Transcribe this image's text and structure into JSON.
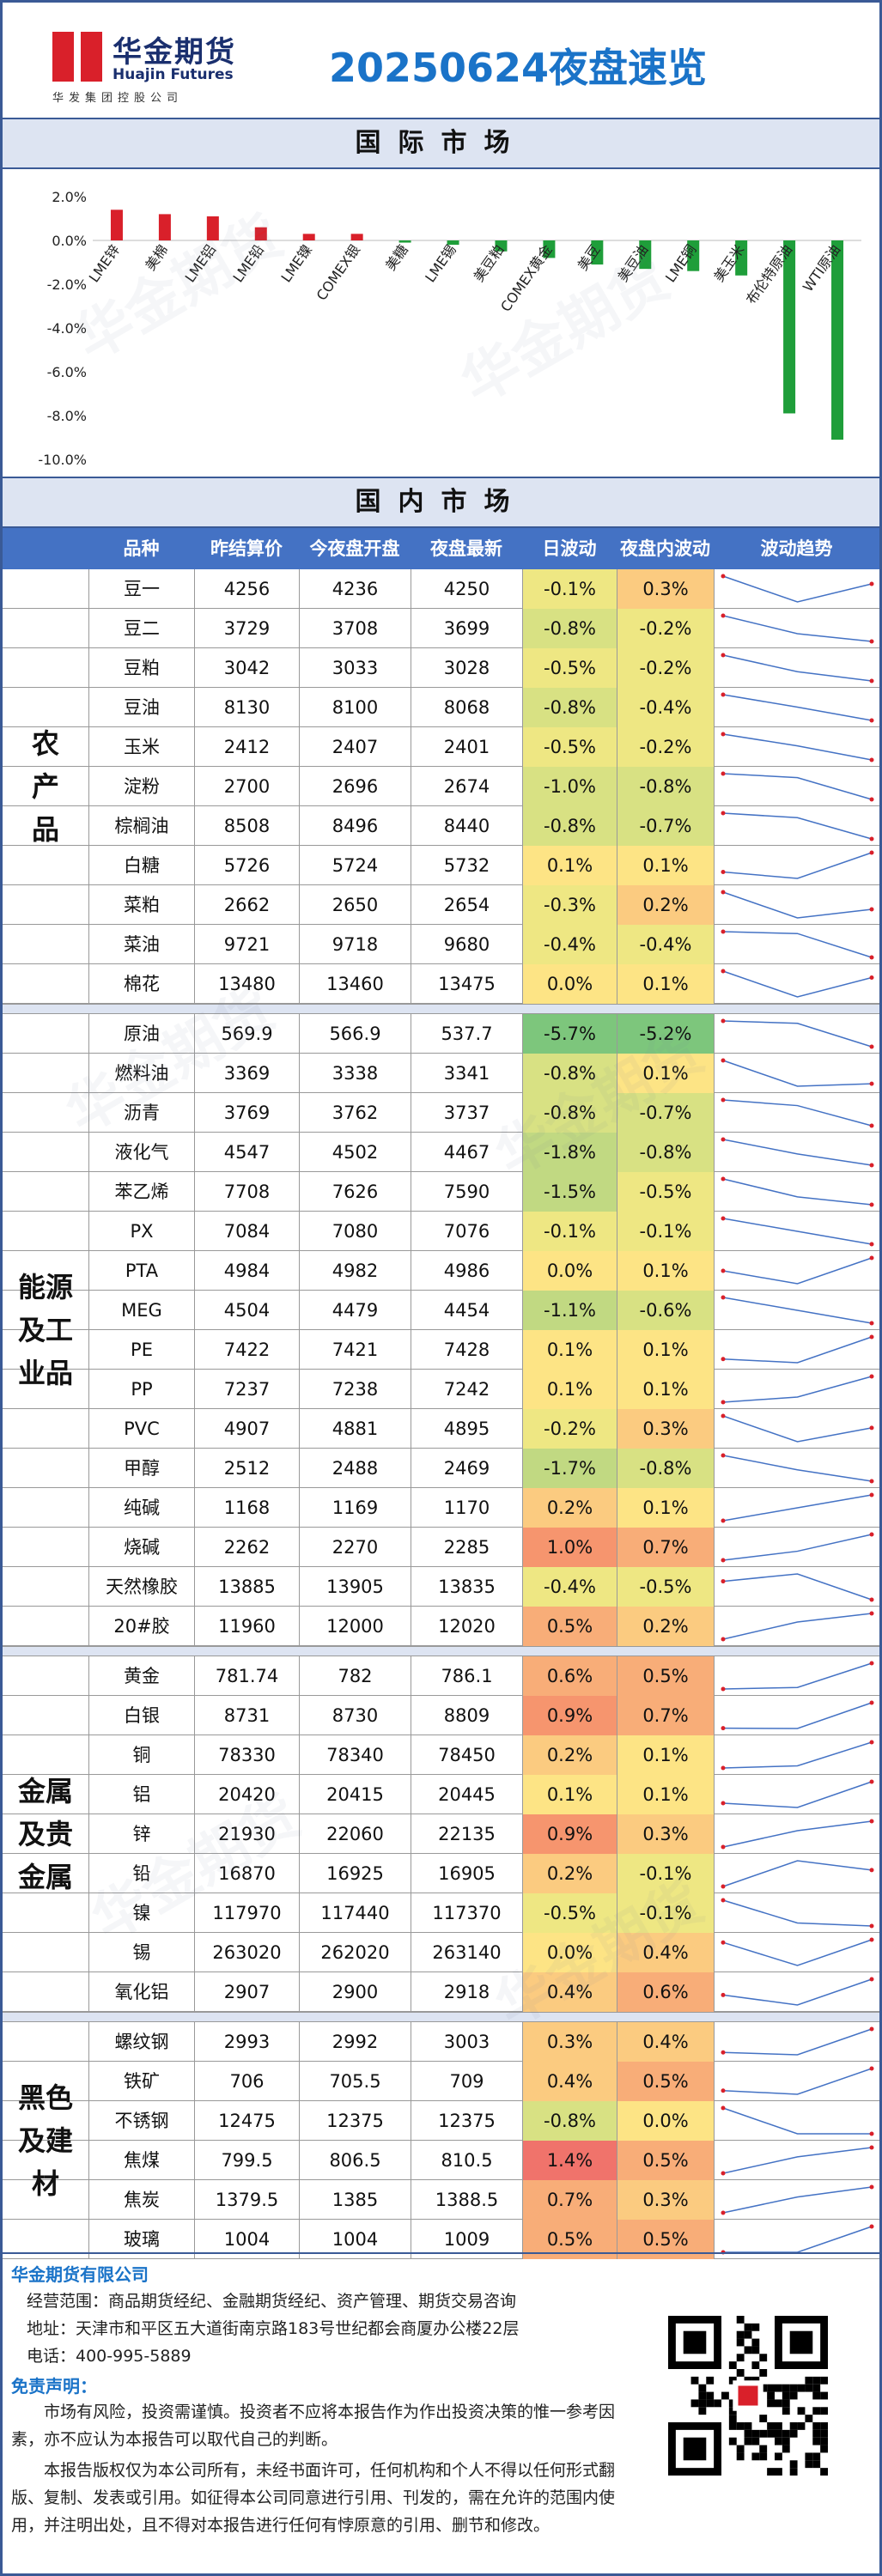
{
  "header": {
    "company_cn": "华金期货",
    "company_en": "Huajin Futures",
    "company_sub": "华发集团控股公司",
    "title": "20250624夜盘速览"
  },
  "intl_section_title": "国际市场",
  "dom_section_title": "国内市场",
  "chart_data": {
    "type": "bar",
    "categories": [
      "LME锌",
      "美棉",
      "LME铝",
      "LME铅",
      "LME镍",
      "COMEX银",
      "美糖",
      "LME锡",
      "美豆粕",
      "COMEX黄金",
      "美豆",
      "美豆油",
      "LME铜",
      "美玉米",
      "布伦特原油",
      "WTI原油"
    ],
    "values": [
      1.4,
      1.2,
      1.1,
      0.6,
      0.3,
      0.3,
      -0.1,
      -0.2,
      -0.5,
      -0.8,
      -1.1,
      -1.3,
      -1.4,
      -1.6,
      -7.9,
      -9.1
    ],
    "ylim": [
      -10,
      2
    ],
    "yticks": [
      "2.0%",
      "0.0%",
      "-2.0%",
      "-4.0%",
      "-6.0%",
      "-8.0%",
      "-10.0%"
    ],
    "bar_colors": [
      "#d9202a",
      "#d9202a",
      "#d9202a",
      "#d9202a",
      "#d9202a",
      "#d9202a",
      "#1f9e3a",
      "#1f9e3a",
      "#1f9e3a",
      "#1f9e3a",
      "#1f9e3a",
      "#1f9e3a",
      "#1f9e3a",
      "#1f9e3a",
      "#1f9e3a",
      "#1f9e3a"
    ]
  },
  "columns": [
    "品种",
    "昨结算价",
    "今夜盘开盘",
    "夜盘最新",
    "日波动",
    "夜盘内波动",
    "波动趋势"
  ],
  "sections": [
    {
      "label": "农产品",
      "rows": [
        [
          "豆一",
          "4256",
          "4236",
          "4250",
          "-0.1%",
          "0.3%"
        ],
        [
          "豆二",
          "3729",
          "3708",
          "3699",
          "-0.8%",
          "-0.2%"
        ],
        [
          "豆粕",
          "3042",
          "3033",
          "3028",
          "-0.5%",
          "-0.2%"
        ],
        [
          "豆油",
          "8130",
          "8100",
          "8068",
          "-0.8%",
          "-0.4%"
        ],
        [
          "玉米",
          "2412",
          "2407",
          "2401",
          "-0.5%",
          "-0.2%"
        ],
        [
          "淀粉",
          "2700",
          "2696",
          "2674",
          "-1.0%",
          "-0.8%"
        ],
        [
          "棕榈油",
          "8508",
          "8496",
          "8440",
          "-0.8%",
          "-0.7%"
        ],
        [
          "白糖",
          "5726",
          "5724",
          "5732",
          "0.1%",
          "0.1%"
        ],
        [
          "菜粕",
          "2662",
          "2650",
          "2654",
          "-0.3%",
          "0.2%"
        ],
        [
          "菜油",
          "9721",
          "9718",
          "9680",
          "-0.4%",
          "-0.4%"
        ],
        [
          "棉花",
          "13480",
          "13460",
          "13475",
          "0.0%",
          "0.1%"
        ]
      ]
    },
    {
      "label": "能源及工业品",
      "rows": [
        [
          "原油",
          "569.9",
          "566.9",
          "537.7",
          "-5.7%",
          "-5.2%"
        ],
        [
          "燃料油",
          "3369",
          "3338",
          "3341",
          "-0.8%",
          "0.1%"
        ],
        [
          "沥青",
          "3769",
          "3762",
          "3737",
          "-0.8%",
          "-0.7%"
        ],
        [
          "液化气",
          "4547",
          "4502",
          "4467",
          "-1.8%",
          "-0.8%"
        ],
        [
          "苯乙烯",
          "7708",
          "7626",
          "7590",
          "-1.5%",
          "-0.5%"
        ],
        [
          "PX",
          "7084",
          "7080",
          "7076",
          "-0.1%",
          "-0.1%"
        ],
        [
          "PTA",
          "4984",
          "4982",
          "4986",
          "0.0%",
          "0.1%"
        ],
        [
          "MEG",
          "4504",
          "4479",
          "4454",
          "-1.1%",
          "-0.6%"
        ],
        [
          "PE",
          "7422",
          "7421",
          "7428",
          "0.1%",
          "0.1%"
        ],
        [
          "PP",
          "7237",
          "7238",
          "7242",
          "0.1%",
          "0.1%"
        ],
        [
          "PVC",
          "4907",
          "4881",
          "4895",
          "-0.2%",
          "0.3%"
        ],
        [
          "甲醇",
          "2512",
          "2488",
          "2469",
          "-1.7%",
          "-0.8%"
        ],
        [
          "纯碱",
          "1168",
          "1169",
          "1170",
          "0.2%",
          "0.1%"
        ],
        [
          "烧碱",
          "2262",
          "2270",
          "2285",
          "1.0%",
          "0.7%"
        ],
        [
          "天然橡胶",
          "13885",
          "13905",
          "13835",
          "-0.4%",
          "-0.5%"
        ],
        [
          "20#胶",
          "11960",
          "12000",
          "12020",
          "0.5%",
          "0.2%"
        ]
      ]
    },
    {
      "label": "金属及贵金属",
      "rows": [
        [
          "黄金",
          "781.74",
          "782",
          "786.1",
          "0.6%",
          "0.5%"
        ],
        [
          "白银",
          "8731",
          "8730",
          "8809",
          "0.9%",
          "0.7%"
        ],
        [
          "铜",
          "78330",
          "78340",
          "78450",
          "0.2%",
          "0.1%"
        ],
        [
          "铝",
          "20420",
          "20415",
          "20445",
          "0.1%",
          "0.1%"
        ],
        [
          "锌",
          "21930",
          "22060",
          "22135",
          "0.9%",
          "0.3%"
        ],
        [
          "铅",
          "16870",
          "16925",
          "16905",
          "0.2%",
          "-0.1%"
        ],
        [
          "镍",
          "117970",
          "117440",
          "117370",
          "-0.5%",
          "-0.1%"
        ],
        [
          "锡",
          "263020",
          "262020",
          "263140",
          "0.0%",
          "0.4%"
        ],
        [
          "氧化铝",
          "2907",
          "2900",
          "2918",
          "0.4%",
          "0.6%"
        ]
      ]
    },
    {
      "label": "黑色及建材",
      "rows": [
        [
          "螺纹钢",
          "2993",
          "2992",
          "3003",
          "0.3%",
          "0.4%"
        ],
        [
          "铁矿",
          "706",
          "705.5",
          "709",
          "0.4%",
          "0.5%"
        ],
        [
          "不锈钢",
          "12475",
          "12375",
          "12375",
          "-0.8%",
          "0.0%"
        ],
        [
          "焦煤",
          "799.5",
          "806.5",
          "810.5",
          "1.4%",
          "0.5%"
        ],
        [
          "焦炭",
          "1379.5",
          "1385",
          "1388.5",
          "0.7%",
          "0.3%"
        ],
        [
          "玻璃",
          "1004",
          "1004",
          "1009",
          "0.5%",
          "0.5%"
        ]
      ]
    }
  ],
  "footer": {
    "company": "华金期货有限公司",
    "scope": "经营范围：商品期货经纪、金融期货经纪、资产管理、期货交易咨询",
    "address": "地址：天津市和平区五大道街南京路183号世纪都会商厦办公楼22层",
    "phone": "电话：400-995-5889",
    "disclaimer_title": "免责声明：",
    "para1": "市场有风险，投资需谨慎。投资者不应将本报告作为作出投资决策的惟一参考因素，亦不应认为本报告可以取代自己的判断。",
    "para2": "本报告版权仅为本公司所有，未经书面许可，任何机构和个人不得以任何形式翻版、复制、发表或引用。如征得本公司同意进行引用、刊发的，需在允许的范围内使用，并注明出处，且不得对本报告进行任何有悖原意的引用、删节和修改。"
  }
}
